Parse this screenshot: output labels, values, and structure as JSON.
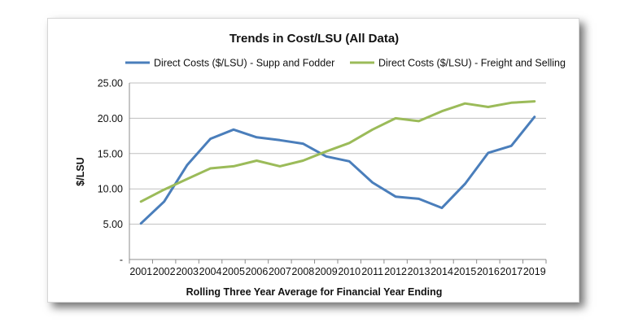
{
  "chart_data": {
    "type": "line",
    "title": "Trends in Cost/LSU (All Data)",
    "xlabel": "Rolling Three Year Average for Financial Year Ending",
    "ylabel": "$/LSU",
    "categories": [
      "2001",
      "2002",
      "2003",
      "2004",
      "2005",
      "2006",
      "2007",
      "2008",
      "2009",
      "2010",
      "2011",
      "2012",
      "2013",
      "2014",
      "2015",
      "2016",
      "2017",
      "2019"
    ],
    "ylim": [
      0,
      25
    ],
    "yticks": [
      0,
      5,
      10,
      15,
      20,
      25
    ],
    "ytick_labels": [
      "-",
      "5.00",
      "10.00",
      "15.00",
      "20.00",
      "25.00"
    ],
    "grid": true,
    "legend_position": "top",
    "series": [
      {
        "name": "Direct Costs ($/LSU) - Supp and Fodder",
        "color": "#4a7ebb",
        "values": [
          5.1,
          8.2,
          13.4,
          17.1,
          18.4,
          17.3,
          16.9,
          16.4,
          14.6,
          13.9,
          10.9,
          8.9,
          8.6,
          7.3,
          10.7,
          15.1,
          16.1,
          20.2
        ]
      },
      {
        "name": "Direct Costs ($/LSU) - Freight and Selling",
        "color": "#9bbb59",
        "values": [
          8.2,
          9.9,
          11.4,
          12.9,
          13.2,
          14.0,
          13.2,
          14.0,
          15.3,
          16.5,
          18.4,
          20.0,
          19.6,
          21.0,
          22.1,
          21.6,
          22.2,
          22.4
        ]
      }
    ]
  }
}
